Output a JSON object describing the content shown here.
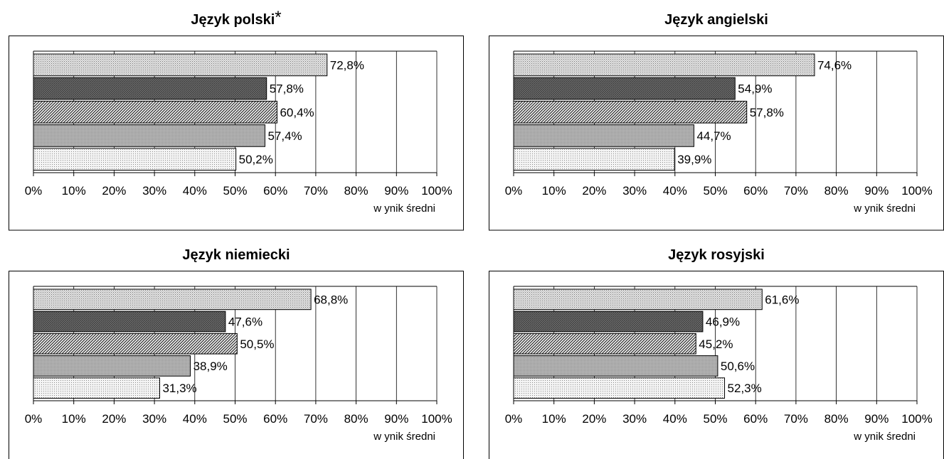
{
  "chart_data": [
    {
      "type": "bar",
      "orientation": "horizontal",
      "title": "Język polski",
      "title_mark": "*",
      "xlabel": "w ynik średni",
      "xlim": [
        0,
        100
      ],
      "x_ticks": [
        "0%",
        "10%",
        "20%",
        "30%",
        "40%",
        "50%",
        "60%",
        "70%",
        "80%",
        "90%",
        "100%"
      ],
      "values": [
        72.8,
        57.8,
        60.4,
        57.4,
        50.2
      ],
      "labels": [
        "72,8%",
        "57,8%",
        "60,4%",
        "57,4%",
        "50,2%"
      ],
      "grid": true
    },
    {
      "type": "bar",
      "orientation": "horizontal",
      "title": "Język angielski",
      "title_mark": "",
      "xlabel": "w ynik średni",
      "xlim": [
        0,
        100
      ],
      "x_ticks": [
        "0%",
        "10%",
        "20%",
        "30%",
        "40%",
        "50%",
        "60%",
        "70%",
        "80%",
        "90%",
        "100%"
      ],
      "values": [
        74.6,
        54.9,
        57.8,
        44.7,
        39.9
      ],
      "labels": [
        "74,6%",
        "54,9%",
        "57,8%",
        "44,7%",
        "39,9%"
      ],
      "grid": true
    },
    {
      "type": "bar",
      "orientation": "horizontal",
      "title": "Język niemiecki",
      "title_mark": "",
      "xlabel": "w ynik średni",
      "xlim": [
        0,
        100
      ],
      "x_ticks": [
        "0%",
        "10%",
        "20%",
        "30%",
        "40%",
        "50%",
        "60%",
        "70%",
        "80%",
        "90%",
        "100%"
      ],
      "values": [
        68.8,
        47.6,
        50.5,
        38.9,
        31.3
      ],
      "labels": [
        "68,8%",
        "47,6%",
        "50,5%",
        "38,9%",
        "31,3%"
      ],
      "grid": true
    },
    {
      "type": "bar",
      "orientation": "horizontal",
      "title": "Język rosyjski",
      "title_mark": "",
      "xlabel": "w ynik średni",
      "xlim": [
        0,
        100
      ],
      "x_ticks": [
        "0%",
        "10%",
        "20%",
        "30%",
        "40%",
        "50%",
        "60%",
        "70%",
        "80%",
        "90%",
        "100%"
      ],
      "values": [
        61.6,
        46.9,
        45.2,
        50.6,
        52.3
      ],
      "labels": [
        "61,6%",
        "46,9%",
        "45,2%",
        "50,6%",
        "52,3%"
      ],
      "grid": true
    }
  ]
}
